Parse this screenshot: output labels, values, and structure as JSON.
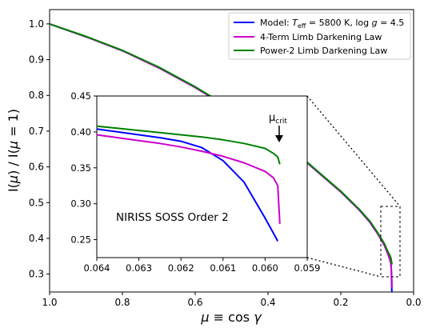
{
  "chart_data": [
    {
      "type": "line",
      "title": "",
      "xlabel": "μ ≡ cos γ",
      "ylabel": "I(μ) / I(μ = 1)",
      "xlim": [
        1.0,
        0.0
      ],
      "ylim": [
        0.25,
        1.04
      ],
      "x_ticks": [
        "1.0",
        "0.8",
        "0.6",
        "0.4",
        "0.2",
        "0.0"
      ],
      "y_ticks": [
        "0.3",
        "0.4",
        "0.5",
        "0.6",
        "0.7",
        "0.8",
        "0.9",
        "1.0"
      ],
      "grid": false,
      "legend_position": "top-right",
      "series": [
        {
          "name": "Model: T_eff = 5800 K, log g = 4.5",
          "color": "#0000ff",
          "x": [
            1.0,
            0.9,
            0.8,
            0.7,
            0.6,
            0.5,
            0.4,
            0.3,
            0.2,
            0.15,
            0.12,
            0.1,
            0.08,
            0.07,
            0.065,
            0.0625,
            0.061,
            0.0597
          ],
          "y": [
            1.0,
            0.964,
            0.925,
            0.877,
            0.822,
            0.76,
            0.692,
            0.618,
            0.53,
            0.48,
            0.445,
            0.415,
            0.38,
            0.355,
            0.34,
            0.33,
            0.31,
            0.25
          ]
        },
        {
          "name": "4-Term Limb Darkening Law",
          "color": "#cc00cc",
          "x": [
            1.0,
            0.9,
            0.8,
            0.7,
            0.6,
            0.5,
            0.4,
            0.3,
            0.2,
            0.15,
            0.12,
            0.1,
            0.08,
            0.07,
            0.065,
            0.0625,
            0.061,
            0.0597,
            0.0596
          ],
          "y": [
            1.0,
            0.964,
            0.925,
            0.877,
            0.822,
            0.76,
            0.692,
            0.618,
            0.53,
            0.48,
            0.445,
            0.415,
            0.38,
            0.355,
            0.34,
            0.33,
            0.31,
            0.28,
            0.262
          ]
        },
        {
          "name": "Power-2 Limb Darkening Law",
          "color": "#008000",
          "x": [
            1.0,
            0.9,
            0.8,
            0.7,
            0.6,
            0.5,
            0.4,
            0.3,
            0.2,
            0.15,
            0.12,
            0.1,
            0.08,
            0.07,
            0.065,
            0.0625,
            0.061,
            0.0597,
            0.0596
          ],
          "y": [
            1.0,
            0.965,
            0.926,
            0.879,
            0.824,
            0.762,
            0.694,
            0.62,
            0.532,
            0.482,
            0.448,
            0.418,
            0.385,
            0.362,
            0.352,
            0.345,
            0.338,
            0.33,
            0.327
          ]
        }
      ]
    },
    {
      "type": "line",
      "title": "",
      "annotation": "NIRISS SOSS Order 2",
      "marker_label": "μcrit",
      "xlim": [
        0.064,
        0.059
      ],
      "ylim": [
        0.225,
        0.45
      ],
      "x_ticks": [
        "0.064",
        "0.063",
        "0.062",
        "0.061",
        "0.060",
        "0.059"
      ],
      "y_ticks": [
        "0.25",
        "0.30",
        "0.35",
        "0.40",
        "0.45"
      ],
      "series": [
        {
          "name": "Model: T_eff = 5800 K, log g = 4.5",
          "color": "#0000ff",
          "x": [
            0.064,
            0.0635,
            0.063,
            0.0625,
            0.062,
            0.0615,
            0.061,
            0.0605,
            0.06,
            0.0597
          ],
          "y": [
            0.404,
            0.4,
            0.396,
            0.392,
            0.387,
            0.378,
            0.36,
            0.33,
            0.28,
            0.248
          ]
        },
        {
          "name": "4-Term Limb Darkening Law",
          "color": "#cc00cc",
          "x": [
            0.064,
            0.0635,
            0.063,
            0.0625,
            0.062,
            0.0615,
            0.061,
            0.0605,
            0.06,
            0.0598,
            0.0597,
            0.05965
          ],
          "y": [
            0.396,
            0.392,
            0.388,
            0.384,
            0.379,
            0.373,
            0.366,
            0.357,
            0.345,
            0.336,
            0.325,
            0.272
          ]
        },
        {
          "name": "Power-2 Limb Darkening Law",
          "color": "#008000",
          "x": [
            0.064,
            0.0635,
            0.063,
            0.0625,
            0.062,
            0.0615,
            0.061,
            0.0605,
            0.06,
            0.0598,
            0.0597,
            0.05965
          ],
          "y": [
            0.408,
            0.405,
            0.402,
            0.399,
            0.396,
            0.393,
            0.389,
            0.384,
            0.377,
            0.37,
            0.365,
            0.355
          ]
        }
      ]
    }
  ]
}
